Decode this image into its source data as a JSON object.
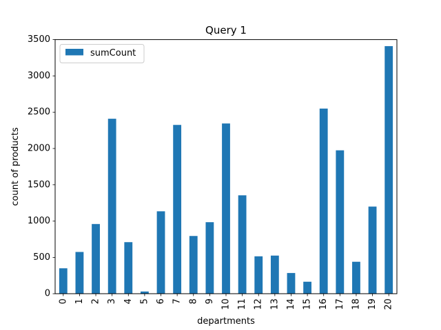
{
  "chart_data": {
    "type": "bar",
    "title": "Query 1",
    "xlabel": "departments",
    "ylabel": "count of products",
    "categories": [
      "0",
      "1",
      "2",
      "3",
      "4",
      "5",
      "6",
      "7",
      "8",
      "9",
      "10",
      "11",
      "12",
      "13",
      "14",
      "15",
      "16",
      "17",
      "18",
      "19",
      "20"
    ],
    "series": [
      {
        "name": "sumCount",
        "color": "#1f77b4",
        "values": [
          350,
          575,
          960,
          2410,
          710,
          30,
          1135,
          2325,
          795,
          985,
          2345,
          1355,
          515,
          525,
          285,
          165,
          2550,
          1975,
          440,
          1200,
          3410
        ]
      }
    ],
    "ylim": [
      0,
      3500
    ],
    "yticks": [
      0,
      500,
      1000,
      1500,
      2000,
      2500,
      3000,
      3500
    ],
    "grid": false,
    "legend_position": "top-left"
  }
}
